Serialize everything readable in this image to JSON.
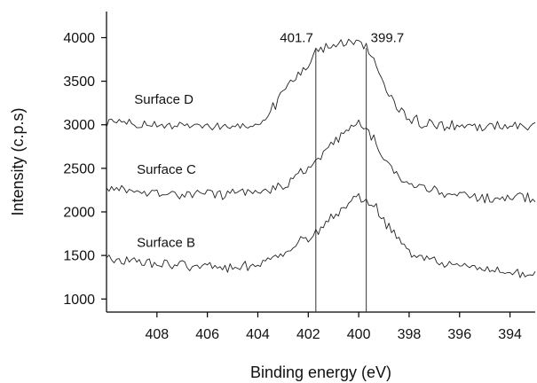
{
  "chart_data": {
    "type": "line",
    "title": "",
    "xlabel": "Binding energy (eV)",
    "ylabel": "Intensity (c.p.s)",
    "xlim": [
      410,
      393
    ],
    "ylim": [
      850,
      4300
    ],
    "x_reversed": true,
    "x_ticks": [
      408,
      406,
      404,
      402,
      400,
      398,
      396,
      394
    ],
    "y_ticks": [
      1000,
      1500,
      2000,
      2500,
      3000,
      3500,
      4000
    ],
    "grid": false,
    "legend": "none",
    "series": [
      {
        "name": "Surface D",
        "label_x": 408.9,
        "label_y": 3240,
        "points": [
          [
            410.0,
            3010
          ],
          [
            409.0,
            3000
          ],
          [
            408.0,
            2990
          ],
          [
            407.0,
            2985
          ],
          [
            406.0,
            2980
          ],
          [
            405.0,
            2960
          ],
          [
            404.5,
            2975
          ],
          [
            404.0,
            3030
          ],
          [
            403.5,
            3150
          ],
          [
            403.0,
            3380
          ],
          [
            402.5,
            3560
          ],
          [
            402.0,
            3700
          ],
          [
            401.7,
            3860
          ],
          [
            401.0,
            3900
          ],
          [
            400.5,
            3950
          ],
          [
            400.0,
            3940
          ],
          [
            399.7,
            3880
          ],
          [
            399.3,
            3700
          ],
          [
            399.0,
            3460
          ],
          [
            398.5,
            3200
          ],
          [
            398.0,
            3060
          ],
          [
            397.0,
            3000
          ],
          [
            396.0,
            2990
          ],
          [
            395.0,
            2980
          ],
          [
            394.0,
            2990
          ],
          [
            393.0,
            2990
          ]
        ]
      },
      {
        "name": "Surface C",
        "label_x": 408.8,
        "label_y": 2440,
        "points": [
          [
            410.0,
            2260
          ],
          [
            409.0,
            2245
          ],
          [
            408.0,
            2225
          ],
          [
            407.0,
            2210
          ],
          [
            406.0,
            2200
          ],
          [
            405.0,
            2210
          ],
          [
            404.0,
            2235
          ],
          [
            403.0,
            2290
          ],
          [
            402.5,
            2390
          ],
          [
            402.0,
            2500
          ],
          [
            401.5,
            2640
          ],
          [
            401.0,
            2800
          ],
          [
            400.5,
            2920
          ],
          [
            400.0,
            3000
          ],
          [
            399.7,
            2960
          ],
          [
            399.3,
            2800
          ],
          [
            399.0,
            2620
          ],
          [
            398.5,
            2450
          ],
          [
            398.0,
            2320
          ],
          [
            397.0,
            2230
          ],
          [
            396.0,
            2200
          ],
          [
            395.0,
            2160
          ],
          [
            394.0,
            2160
          ],
          [
            393.0,
            2150
          ]
        ]
      },
      {
        "name": "Surface B",
        "label_x": 408.8,
        "label_y": 1600,
        "points": [
          [
            410.0,
            1450
          ],
          [
            409.0,
            1430
          ],
          [
            408.0,
            1410
          ],
          [
            407.0,
            1385
          ],
          [
            406.0,
            1370
          ],
          [
            405.0,
            1360
          ],
          [
            404.0,
            1400
          ],
          [
            403.0,
            1530
          ],
          [
            402.5,
            1620
          ],
          [
            402.0,
            1700
          ],
          [
            401.5,
            1800
          ],
          [
            401.0,
            1950
          ],
          [
            400.5,
            2050
          ],
          [
            400.0,
            2170
          ],
          [
            399.7,
            2150
          ],
          [
            399.3,
            2050
          ],
          [
            399.0,
            1900
          ],
          [
            398.5,
            1700
          ],
          [
            398.0,
            1530
          ],
          [
            397.0,
            1430
          ],
          [
            396.0,
            1370
          ],
          [
            395.0,
            1330
          ],
          [
            394.0,
            1300
          ],
          [
            393.0,
            1280
          ]
        ]
      }
    ],
    "annotations": [
      {
        "text": "401.7",
        "x": 401.7,
        "side": "left"
      },
      {
        "text": "399.7",
        "x": 399.7,
        "side": "right"
      }
    ],
    "marker_lines": [
      {
        "x": 401.7,
        "y_top": 3860,
        "y_bottom": 850
      },
      {
        "x": 399.7,
        "y_top": 3880,
        "y_bottom": 850
      }
    ]
  }
}
